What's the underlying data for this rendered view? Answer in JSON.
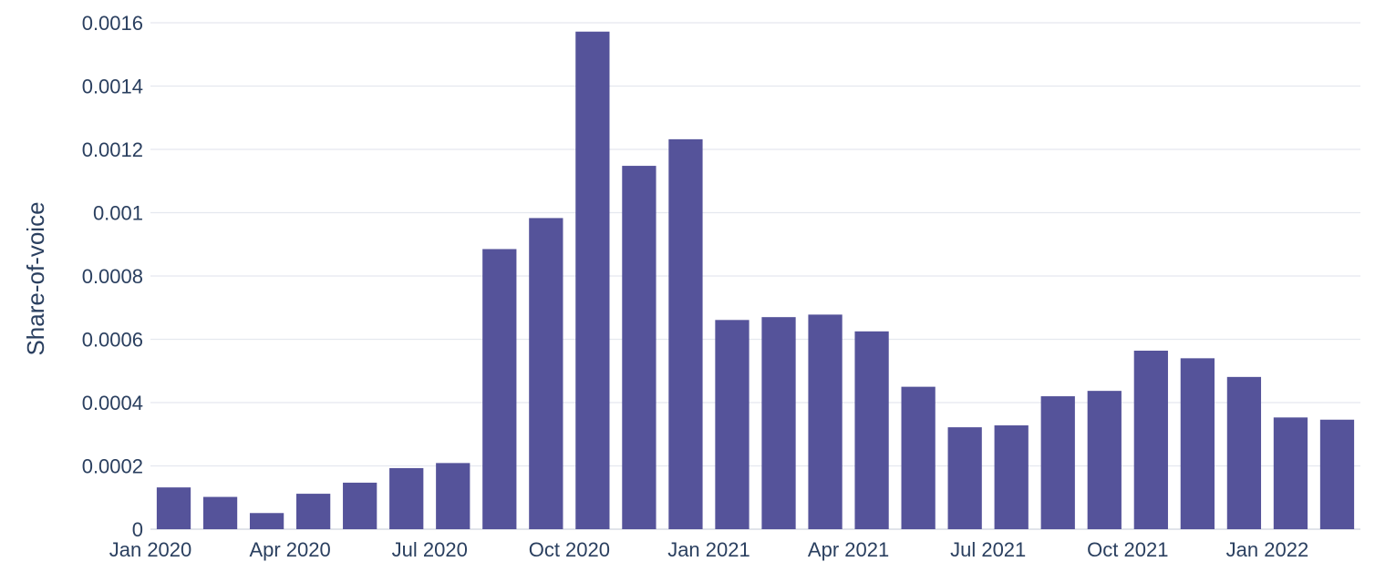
{
  "chart_data": {
    "type": "bar",
    "title": "",
    "xlabel": "",
    "ylabel": "Share-of-voice",
    "bar_color": "#55539a",
    "ylim": [
      0,
      0.0016
    ],
    "yticks": [
      0,
      0.0002,
      0.0004,
      0.0006,
      0.0008,
      0.001,
      0.0012,
      0.0014,
      0.0016
    ],
    "ytick_labels": [
      "0",
      "0.0002",
      "0.0004",
      "0.0006",
      "0.0008",
      "0.001",
      "0.0012",
      "0.0014",
      "0.0016"
    ],
    "xtick_labels": [
      {
        "date": "2020-01",
        "label": "Jan 2020"
      },
      {
        "date": "2020-04",
        "label": "Apr 2020"
      },
      {
        "date": "2020-07",
        "label": "Jul 2020"
      },
      {
        "date": "2020-10",
        "label": "Oct 2020"
      },
      {
        "date": "2021-01",
        "label": "Jan 2021"
      },
      {
        "date": "2021-04",
        "label": "Apr 2021"
      },
      {
        "date": "2021-07",
        "label": "Jul 2021"
      },
      {
        "date": "2021-10",
        "label": "Oct 2021"
      },
      {
        "date": "2022-01",
        "label": "Jan 2022"
      }
    ],
    "grid": true,
    "legend": "none",
    "x": [
      "2020-01",
      "2020-02",
      "2020-03",
      "2020-04",
      "2020-05",
      "2020-06",
      "2020-07",
      "2020-08",
      "2020-09",
      "2020-10",
      "2020-11",
      "2020-12",
      "2021-01",
      "2021-02",
      "2021-03",
      "2021-04",
      "2021-05",
      "2021-06",
      "2021-07",
      "2021-08",
      "2021-09",
      "2021-10",
      "2021-11",
      "2021-12",
      "2022-01",
      "2022-02"
    ],
    "values": [
      0.000132,
      0.000102,
      5.1e-05,
      0.000112,
      0.000147,
      0.000193,
      0.000209,
      0.000885,
      0.000983,
      0.001572,
      0.001148,
      0.001232,
      0.000661,
      0.00067,
      0.000678,
      0.000625,
      0.00045,
      0.000322,
      0.000328,
      0.00042,
      0.000437,
      0.000564,
      0.00054,
      0.000481,
      0.000353,
      0.000346
    ]
  }
}
